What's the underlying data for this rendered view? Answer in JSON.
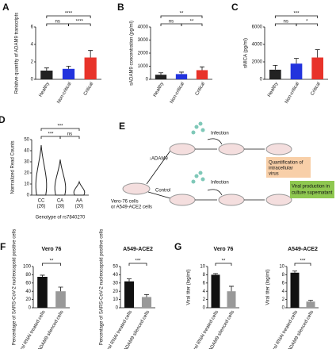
{
  "chart_data": [
    {
      "type": "bar",
      "panel": "A",
      "ylabel": "Relative quantity of ADAM9 transcripts",
      "categories": [
        "Healthy",
        "Non-critical",
        "Critical"
      ],
      "values": [
        1.0,
        1.2,
        2.5
      ],
      "errors": [
        0.3,
        0.3,
        0.8
      ],
      "colors": [
        "#222222",
        "#2233dd",
        "#e8332a"
      ],
      "ylim": [
        0,
        6
      ],
      "yticks": [
        0,
        2,
        4,
        6
      ],
      "comparisons": [
        {
          "pair": [
            0,
            1
          ],
          "label": "ns"
        },
        {
          "pair": [
            1,
            2
          ],
          "label": "****"
        },
        {
          "pair": [
            0,
            2
          ],
          "label": "****"
        }
      ]
    },
    {
      "type": "bar",
      "panel": "B",
      "ylabel": "sADAM9 concentration (pg/ml)",
      "categories": [
        "Healthy",
        "Non-critical",
        "Critical"
      ],
      "values": [
        350,
        400,
        700
      ],
      "errors": [
        150,
        150,
        250
      ],
      "colors": [
        "#222222",
        "#2233dd",
        "#e8332a"
      ],
      "ylim": [
        0,
        4000
      ],
      "yticks": [
        0,
        1000,
        2000,
        3000,
        4000
      ],
      "comparisons": [
        {
          "pair": [
            0,
            1
          ],
          "label": "ns"
        },
        {
          "pair": [
            1,
            2
          ],
          "label": "**"
        },
        {
          "pair": [
            0,
            2
          ],
          "label": "**"
        }
      ]
    },
    {
      "type": "bar",
      "panel": "C",
      "ylabel": "sMICA (pg/ml)",
      "categories": [
        "Healthy",
        "Non-critical",
        "Critical"
      ],
      "values": [
        1100,
        1800,
        2500
      ],
      "errors": [
        500,
        600,
        900
      ],
      "colors": [
        "#222222",
        "#2233dd",
        "#e8332a"
      ],
      "ylim": [
        0,
        6000
      ],
      "yticks": [
        0,
        2000,
        4000,
        6000
      ],
      "comparisons": [
        {
          "pair": [
            0,
            1
          ],
          "label": "ns"
        },
        {
          "pair": [
            1,
            2
          ],
          "label": "*"
        },
        {
          "pair": [
            0,
            2
          ],
          "label": "***"
        }
      ]
    },
    {
      "type": "violin",
      "panel": "D",
      "ylabel": "Normalized Read Counts",
      "xlabel": "Genotype of rs7840270",
      "categories": [
        [
          "CC",
          "(26)"
        ],
        [
          "CA",
          "(28)"
        ],
        [
          "AA",
          "(20)"
        ]
      ],
      "values": [
        45,
        32,
        12
      ],
      "color": "#222222",
      "ylim": [
        0,
        50
      ],
      "yticks": [
        0,
        10,
        20,
        30,
        40,
        50
      ],
      "comparisons": [
        {
          "pair": [
            0,
            1
          ],
          "label": "***"
        },
        {
          "pair": [
            1,
            2
          ],
          "label": "ns"
        },
        {
          "pair": [
            0,
            2
          ],
          "label": "***"
        }
      ]
    },
    {
      "type": "bar",
      "panel": "F",
      "title": "Vero 76",
      "ylabel": "Percentage of SARS-CoV-2 nucleocapsid positive cells",
      "categories": [
        "control RNAi treated cells",
        "ADAM9 silenced cells"
      ],
      "values": [
        75,
        40
      ],
      "errors": [
        4,
        10
      ],
      "colors": [
        "#111111",
        "#999999"
      ],
      "ylim": [
        0,
        100
      ],
      "yticks": [
        0,
        20,
        40,
        60,
        80,
        100
      ],
      "comparisons": [
        {
          "pair": [
            0,
            1
          ],
          "label": "**"
        }
      ]
    },
    {
      "type": "bar",
      "title": "A549-ACE2",
      "ylabel": "Percentage of SARS-CoV-2 nucleocapsid positive cells",
      "categories": [
        "control RNAi treated cells",
        "ADAM9 silenced cells"
      ],
      "values": [
        32,
        13
      ],
      "errors": [
        3,
        3
      ],
      "colors": [
        "#111111",
        "#999999"
      ],
      "ylim": [
        0,
        50
      ],
      "yticks": [
        0,
        10,
        20,
        30,
        40,
        50
      ],
      "comparisons": [
        {
          "pair": [
            0,
            1
          ],
          "label": "***"
        }
      ]
    },
    {
      "type": "bar",
      "panel": "G",
      "title": "Vero 76",
      "ylabel": "Viral titer (log/ml)",
      "categories": [
        "control RNAi treated cells",
        "ADAM9 silenced cells"
      ],
      "values": [
        8,
        4
      ],
      "errors": [
        0.3,
        1.2
      ],
      "colors": [
        "#111111",
        "#999999"
      ],
      "ylim": [
        0,
        10
      ],
      "yticks": [
        0,
        2,
        4,
        6,
        8,
        10
      ],
      "comparisons": [
        {
          "pair": [
            0,
            1
          ],
          "label": "**"
        }
      ]
    },
    {
      "type": "bar",
      "title": "A549-ACE2",
      "ylabel": "Viral titer (log/ml)",
      "categories": [
        "control RNAi treated cells",
        "ADAM9 silenced cells"
      ],
      "values": [
        8.5,
        1.5
      ],
      "errors": [
        0.4,
        0.3
      ],
      "colors": [
        "#111111",
        "#999999"
      ],
      "ylim": [
        0,
        10
      ],
      "yticks": [
        0,
        2,
        4,
        6,
        8,
        10
      ],
      "comparisons": [
        {
          "pair": [
            0,
            1
          ],
          "label": "***"
        }
      ]
    }
  ],
  "diagram": {
    "panel": "E",
    "cells": [
      "Vero-76 cells",
      "or A549-ACE2 cells"
    ],
    "knockdown": "↓ADAM9",
    "control": "Control",
    "infection": "Infection",
    "quantification": [
      "Quantification of",
      "intracellular",
      "virus"
    ],
    "production": [
      "Viral production in",
      "culture supernatant"
    ]
  }
}
